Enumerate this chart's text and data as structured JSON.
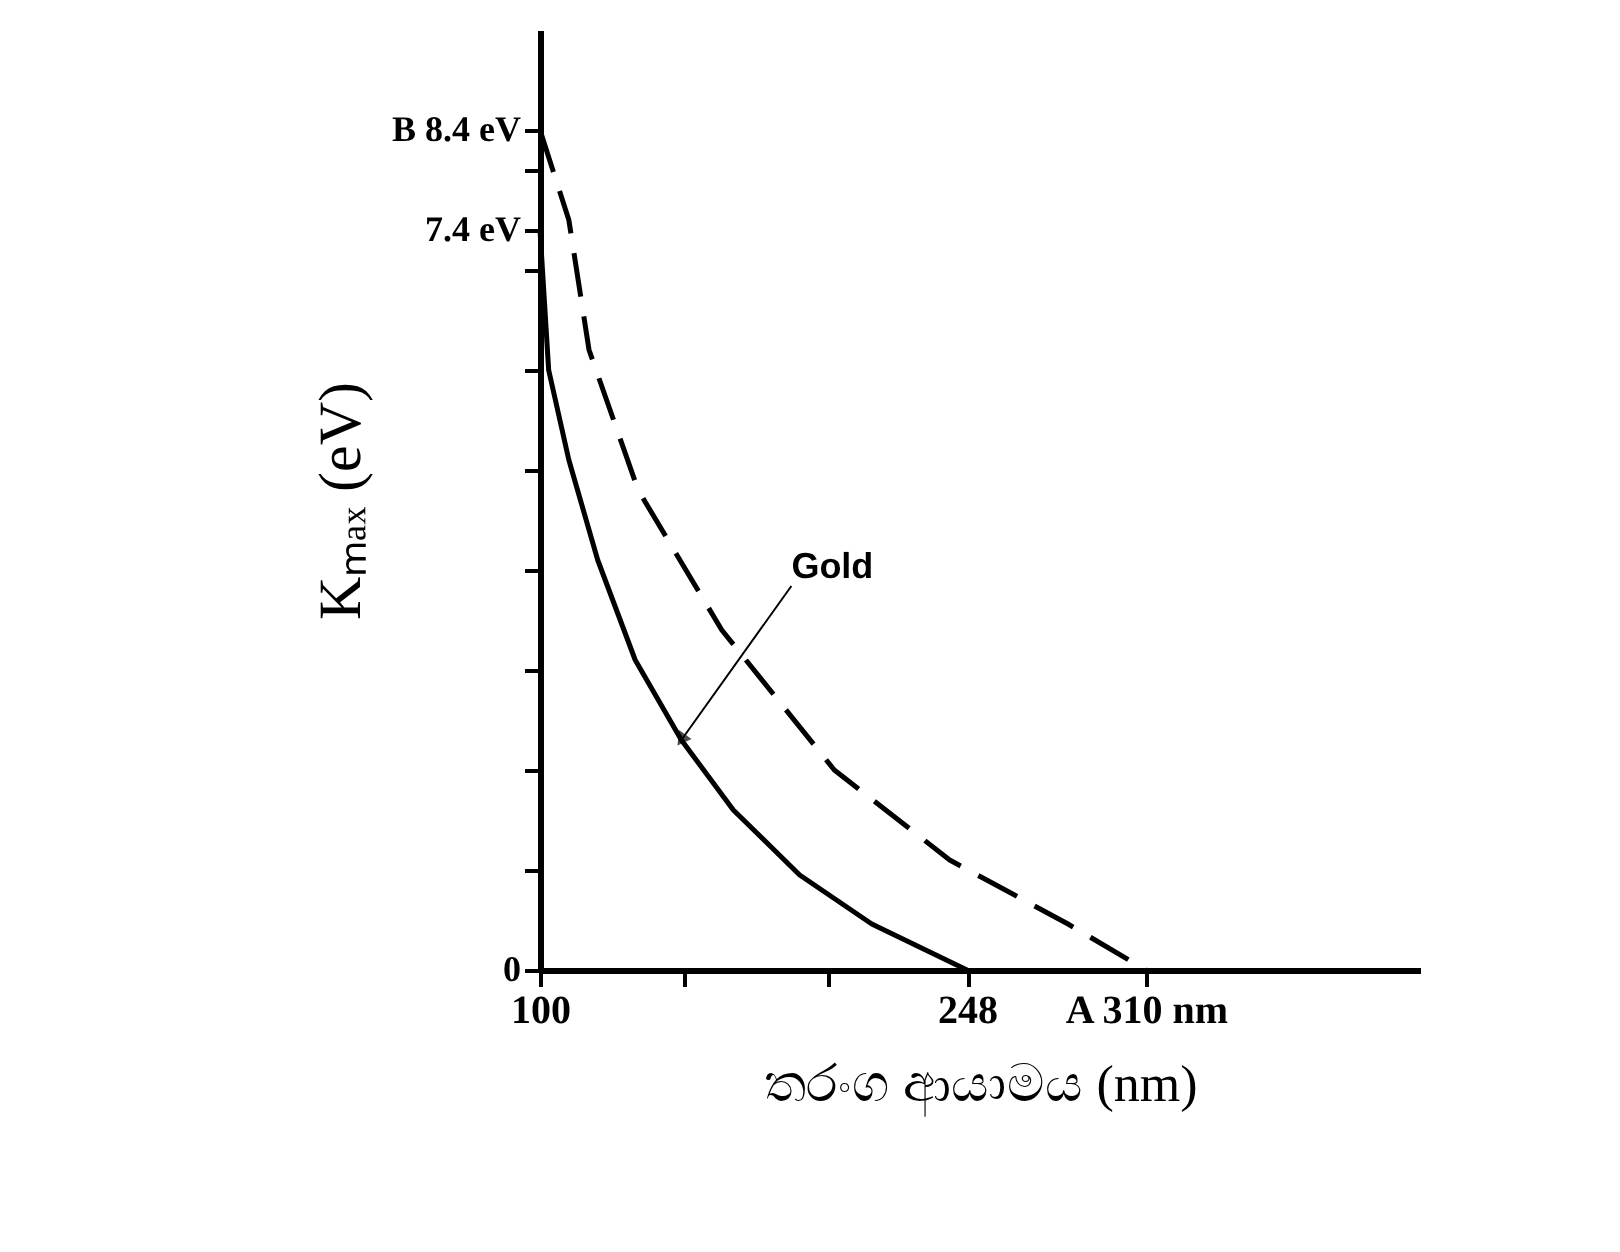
{
  "chart_data": {
    "type": "line",
    "xlabel": "තරංග ආයාමය (nm)",
    "ylabel": "Kₘₐₓ (eV)",
    "xlim": [
      100,
      405
    ],
    "ylim": [
      0,
      9.4
    ],
    "xticks": [
      100,
      {
        "value": 150,
        "label": null
      },
      {
        "value": 200,
        "label": null
      },
      248,
      {
        "value": 310,
        "label": "A 310 nm"
      }
    ],
    "yticks": [
      0,
      {
        "value": 1,
        "label": null
      },
      {
        "value": 2,
        "label": null
      },
      {
        "value": 3,
        "label": null
      },
      {
        "value": 4,
        "label": null
      },
      {
        "value": 5,
        "label": null
      },
      {
        "value": 6,
        "label": null
      },
      {
        "value": 7,
        "label": null
      },
      {
        "value": 7.4,
        "label": "7.4 eV"
      },
      {
        "value": 8,
        "label": null
      },
      {
        "value": 8.4,
        "label": "B 8.4 eV"
      }
    ],
    "grid": false,
    "marker": "none",
    "series": [
      {
        "name": "Gold",
        "color": "#000000",
        "line_style": "solid",
        "x": [
          100,
          103,
          110,
          120,
          133,
          149,
          167,
          190,
          215,
          248
        ],
        "values": [
          7.4,
          6.0,
          5.1,
          4.1,
          3.1,
          2.3,
          1.6,
          0.95,
          0.46,
          0
        ]
      },
      {
        "color": "#000000",
        "line_style": "dashed",
        "x": [
          100,
          110,
          117,
          134,
          163,
          202,
          242,
          283,
          310
        ],
        "values": [
          8.4,
          7.5,
          6.2,
          4.8,
          3.4,
          2.0,
          1.1,
          0.46,
          0
        ]
      }
    ]
  }
}
